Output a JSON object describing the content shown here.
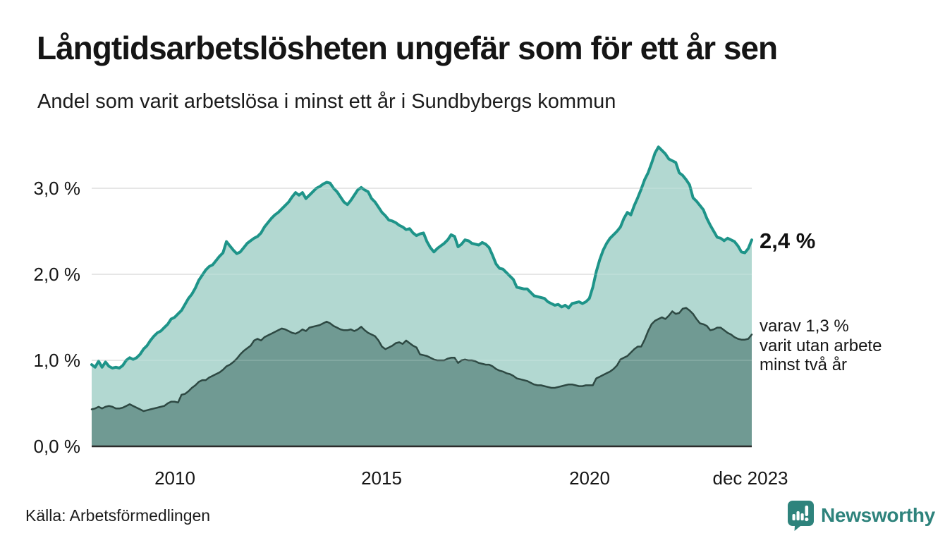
{
  "chart_data": {
    "type": "area",
    "title": "Långtidsarbetslösheten ungefär som för ett år sen",
    "subtitle": "Andel som varit arbetslösa i minst ett år i Sundbybergs kommun",
    "x_range": [
      "jan 2008",
      "dec 2023"
    ],
    "x_frequency": "monthly",
    "ylim": [
      0,
      3.6
    ],
    "grid": "horizontal",
    "y_ticks": [
      {
        "label": "3,0 %",
        "value": 3.0
      },
      {
        "label": "2,0 %",
        "value": 2.0
      },
      {
        "label": "1,0 %",
        "value": 1.0
      },
      {
        "label": "0,0 %",
        "value": 0.0
      }
    ],
    "x_ticks": [
      {
        "label": "2010",
        "year": 2010.0
      },
      {
        "label": "2015",
        "year": 2015.0
      },
      {
        "label": "2020",
        "year": 2020.0
      },
      {
        "label": "dec 2023",
        "year": 2023.92
      }
    ],
    "annotations": {
      "latest_total": "2,4 %",
      "note_lines": [
        "varav 1,3 %",
        "varit utan arbete",
        "minst två år"
      ]
    },
    "series": [
      {
        "name": "Andel arbetslösa minst ett år",
        "latest_value": 2.4,
        "line_color": "#1e9489",
        "fill_color": "#b2d8d1",
        "line_width": 4,
        "values": [
          0.95,
          0.92,
          0.99,
          0.92,
          0.98,
          0.93,
          0.91,
          0.92,
          0.91,
          0.94,
          1.0,
          1.03,
          1.01,
          1.03,
          1.07,
          1.13,
          1.17,
          1.23,
          1.28,
          1.32,
          1.34,
          1.38,
          1.42,
          1.48,
          1.5,
          1.54,
          1.58,
          1.65,
          1.72,
          1.77,
          1.84,
          1.93,
          1.99,
          2.05,
          2.09,
          2.11,
          2.16,
          2.21,
          2.25,
          2.38,
          2.33,
          2.28,
          2.24,
          2.26,
          2.31,
          2.36,
          2.39,
          2.42,
          2.44,
          2.48,
          2.55,
          2.6,
          2.65,
          2.69,
          2.72,
          2.76,
          2.8,
          2.84,
          2.9,
          2.95,
          2.92,
          2.95,
          2.88,
          2.92,
          2.96,
          3.0,
          3.02,
          3.05,
          3.07,
          3.06,
          3.0,
          2.96,
          2.9,
          2.84,
          2.81,
          2.86,
          2.92,
          2.98,
          3.01,
          2.98,
          2.96,
          2.88,
          2.84,
          2.78,
          2.72,
          2.68,
          2.63,
          2.62,
          2.6,
          2.57,
          2.55,
          2.52,
          2.53,
          2.48,
          2.45,
          2.47,
          2.48,
          2.38,
          2.31,
          2.26,
          2.3,
          2.33,
          2.36,
          2.4,
          2.46,
          2.44,
          2.32,
          2.35,
          2.4,
          2.39,
          2.36,
          2.35,
          2.34,
          2.37,
          2.35,
          2.31,
          2.22,
          2.12,
          2.07,
          2.06,
          2.02,
          1.98,
          1.94,
          1.85,
          1.84,
          1.83,
          1.83,
          1.79,
          1.75,
          1.74,
          1.73,
          1.72,
          1.68,
          1.66,
          1.64,
          1.65,
          1.62,
          1.64,
          1.61,
          1.66,
          1.67,
          1.68,
          1.66,
          1.68,
          1.72,
          1.85,
          2.03,
          2.17,
          2.28,
          2.36,
          2.42,
          2.46,
          2.5,
          2.55,
          2.65,
          2.72,
          2.69,
          2.8,
          2.89,
          2.99,
          3.1,
          3.18,
          3.29,
          3.41,
          3.48,
          3.44,
          3.4,
          3.34,
          3.32,
          3.3,
          3.18,
          3.15,
          3.1,
          3.04,
          2.89,
          2.85,
          2.8,
          2.75,
          2.65,
          2.57,
          2.5,
          2.43,
          2.42,
          2.39,
          2.42,
          2.4,
          2.38,
          2.33,
          2.26,
          2.25,
          2.3,
          2.4
        ]
      },
      {
        "name": "varav arbetslösa minst två år",
        "latest_value": 1.3,
        "line_color": "#2e4943",
        "fill_color": "#709a93",
        "line_width": 2.5,
        "values": [
          0.43,
          0.44,
          0.46,
          0.44,
          0.46,
          0.47,
          0.46,
          0.44,
          0.44,
          0.45,
          0.47,
          0.49,
          0.47,
          0.45,
          0.43,
          0.41,
          0.42,
          0.43,
          0.44,
          0.45,
          0.46,
          0.47,
          0.5,
          0.52,
          0.52,
          0.51,
          0.6,
          0.61,
          0.64,
          0.68,
          0.71,
          0.75,
          0.77,
          0.77,
          0.8,
          0.82,
          0.84,
          0.86,
          0.89,
          0.93,
          0.95,
          0.98,
          1.02,
          1.07,
          1.11,
          1.14,
          1.17,
          1.23,
          1.25,
          1.23,
          1.27,
          1.29,
          1.31,
          1.33,
          1.35,
          1.37,
          1.36,
          1.34,
          1.32,
          1.31,
          1.33,
          1.36,
          1.34,
          1.38,
          1.39,
          1.4,
          1.41,
          1.43,
          1.45,
          1.43,
          1.4,
          1.38,
          1.36,
          1.35,
          1.35,
          1.36,
          1.34,
          1.36,
          1.39,
          1.35,
          1.32,
          1.3,
          1.28,
          1.23,
          1.16,
          1.13,
          1.15,
          1.17,
          1.2,
          1.21,
          1.19,
          1.23,
          1.2,
          1.17,
          1.15,
          1.07,
          1.06,
          1.05,
          1.03,
          1.01,
          1.0,
          1.0,
          1.0,
          1.02,
          1.03,
          1.03,
          0.97,
          1.0,
          1.01,
          1.0,
          1.0,
          0.99,
          0.97,
          0.96,
          0.95,
          0.95,
          0.93,
          0.9,
          0.88,
          0.87,
          0.85,
          0.84,
          0.82,
          0.79,
          0.78,
          0.77,
          0.76,
          0.74,
          0.72,
          0.71,
          0.71,
          0.7,
          0.69,
          0.68,
          0.68,
          0.69,
          0.7,
          0.71,
          0.72,
          0.72,
          0.71,
          0.7,
          0.7,
          0.71,
          0.71,
          0.71,
          0.79,
          0.81,
          0.83,
          0.85,
          0.87,
          0.9,
          0.94,
          1.01,
          1.03,
          1.05,
          1.09,
          1.13,
          1.16,
          1.16,
          1.24,
          1.34,
          1.42,
          1.46,
          1.48,
          1.5,
          1.48,
          1.52,
          1.57,
          1.54,
          1.55,
          1.6,
          1.61,
          1.58,
          1.54,
          1.48,
          1.43,
          1.42,
          1.4,
          1.35,
          1.36,
          1.38,
          1.38,
          1.35,
          1.32,
          1.3,
          1.27,
          1.25,
          1.24,
          1.24,
          1.25,
          1.3
        ]
      }
    ]
  },
  "colors": {
    "background": "#ffffff",
    "gridline": "#e3e3e3",
    "axis_line": "#2b2b2b",
    "text": "#161616",
    "brand_teal": "#2e837c"
  },
  "footer": {
    "source": "Källa: Arbetsförmedlingen"
  },
  "logo": {
    "text": "Newsworthy"
  }
}
